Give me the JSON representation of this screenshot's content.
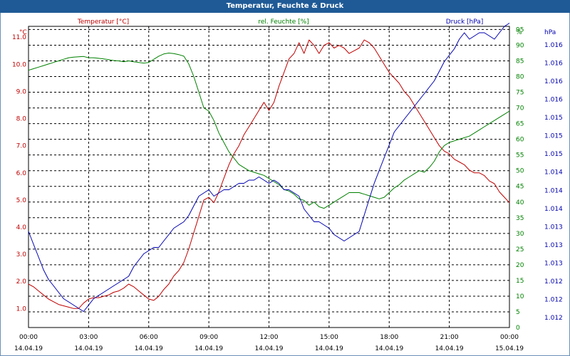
{
  "chart_data": {
    "type": "line",
    "title": "Temperatur, Feuchte & Druck",
    "colors": {
      "temperature": "#c00000",
      "humidity": "#008000",
      "pressure": "#0000b0",
      "grid": "#000000"
    },
    "x_ticks": [
      {
        "time": "00:00",
        "date": "14.04.19"
      },
      {
        "time": "03:00",
        "date": "14.04.19"
      },
      {
        "time": "06:00",
        "date": "14.04.19"
      },
      {
        "time": "09:00",
        "date": "14.04.19"
      },
      {
        "time": "12:00",
        "date": "14.04.19"
      },
      {
        "time": "15:00",
        "date": "14.04.19"
      },
      {
        "time": "18:00",
        "date": "14.04.19"
      },
      {
        "time": "21:00",
        "date": "14.04.19"
      },
      {
        "time": "00:00",
        "date": "15.04.19"
      }
    ],
    "xlim": [
      0,
      24
    ],
    "axes": {
      "temperature": {
        "label": "Temperatur [°C]",
        "unit": "°C",
        "ylim": [
          0.3,
          11.4
        ],
        "ticks": [
          1.0,
          2.0,
          3.0,
          4.0,
          5.0,
          6.0,
          7.0,
          8.0,
          9.0,
          10.0,
          11.0
        ],
        "tick_labels": [
          "1.0",
          "2.0",
          "3.0",
          "4.0",
          "5.0",
          "6.0",
          "7.0",
          "8.0",
          "9.0",
          "10.0",
          "11.0"
        ]
      },
      "humidity": {
        "label": "rel. Feuchte [%]",
        "unit": "%",
        "ylim": [
          0,
          96
        ],
        "ticks": [
          0,
          5,
          10,
          15,
          20,
          25,
          30,
          35,
          40,
          45,
          50,
          55,
          60,
          65,
          70,
          75,
          80,
          85,
          90,
          95
        ],
        "tick_labels": [
          "0",
          "5",
          "10",
          "15",
          "20",
          "25",
          "30",
          "35",
          "40",
          "45",
          "50",
          "55",
          "60",
          "65",
          "70",
          "75",
          "80",
          "85",
          "90",
          "95"
        ]
      },
      "pressure": {
        "label": "Druck [hPa]",
        "unit": "hPa",
        "ylim": [
          1011.6,
          1016.3
        ],
        "tick_labels": [
          "1.012",
          "1.012",
          "1.012",
          "1.013",
          "1.013",
          "1.013",
          "1.014",
          "1.014",
          "1.014",
          "1.015",
          "1.015",
          "1.015",
          "1.016",
          "1.016",
          "1.016",
          "1.016"
        ]
      }
    },
    "series": [
      {
        "name": "Temperatur",
        "axis": "temperature",
        "x": [
          0,
          0.25,
          0.5,
          0.75,
          1,
          1.25,
          1.5,
          1.75,
          2,
          2.25,
          2.5,
          2.75,
          3,
          3.25,
          3.5,
          3.75,
          4,
          4.25,
          4.5,
          4.75,
          5,
          5.25,
          5.5,
          5.75,
          6,
          6.25,
          6.5,
          6.75,
          7,
          7.25,
          7.5,
          7.75,
          8,
          8.25,
          8.5,
          8.75,
          9,
          9.25,
          9.5,
          9.75,
          10,
          10.25,
          10.5,
          10.75,
          11,
          11.25,
          11.5,
          11.75,
          12,
          12.25,
          12.5,
          12.75,
          13,
          13.25,
          13.5,
          13.75,
          14,
          14.25,
          14.5,
          14.75,
          15,
          15.25,
          15.5,
          15.75,
          16,
          16.25,
          16.5,
          16.75,
          17,
          17.25,
          17.5,
          17.75,
          18,
          18.25,
          18.5,
          18.75,
          19,
          19.25,
          19.5,
          19.75,
          20,
          20.25,
          20.5,
          20.75,
          21,
          21.25,
          21.5,
          21.75,
          22,
          22.25,
          22.5,
          22.75,
          23,
          23.25,
          23.5,
          23.75,
          24
        ],
        "values": [
          1.9,
          1.8,
          1.65,
          1.5,
          1.35,
          1.25,
          1.15,
          1.1,
          1.05,
          1.0,
          1.0,
          1.2,
          1.35,
          1.4,
          1.4,
          1.45,
          1.5,
          1.6,
          1.65,
          1.75,
          1.9,
          1.8,
          1.65,
          1.5,
          1.35,
          1.3,
          1.45,
          1.7,
          1.9,
          2.2,
          2.4,
          2.7,
          3.2,
          3.8,
          4.4,
          5.0,
          5.1,
          4.9,
          5.3,
          5.8,
          6.3,
          6.7,
          7.0,
          7.4,
          7.7,
          8.0,
          8.3,
          8.6,
          8.3,
          8.6,
          9.2,
          9.7,
          10.2,
          10.4,
          10.8,
          10.4,
          10.9,
          10.7,
          10.4,
          10.7,
          10.8,
          10.6,
          10.7,
          10.6,
          10.4,
          10.5,
          10.6,
          10.9,
          10.8,
          10.6,
          10.3,
          10.0,
          9.7,
          9.5,
          9.3,
          9.0,
          8.8,
          8.5,
          8.2,
          7.9,
          7.6,
          7.3,
          7.0,
          6.8,
          6.7,
          6.5,
          6.4,
          6.3,
          6.1,
          6.0,
          6.0,
          5.9,
          5.7,
          5.6,
          5.3,
          5.1,
          4.9
        ]
      },
      {
        "name": "rel. Feuchte",
        "axis": "humidity",
        "x": [
          0,
          0.25,
          0.5,
          0.75,
          1,
          1.25,
          1.5,
          1.75,
          2,
          2.25,
          2.5,
          2.75,
          3,
          3.25,
          3.5,
          3.75,
          4,
          4.25,
          4.5,
          4.75,
          5,
          5.25,
          5.5,
          5.75,
          6,
          6.25,
          6.5,
          6.75,
          7,
          7.25,
          7.5,
          7.75,
          8,
          8.25,
          8.5,
          8.75,
          9,
          9.25,
          9.5,
          9.75,
          10,
          10.25,
          10.5,
          10.75,
          11,
          11.25,
          11.5,
          11.75,
          12,
          12.25,
          12.5,
          12.75,
          13,
          13.25,
          13.5,
          13.75,
          14,
          14.25,
          14.5,
          14.75,
          15,
          15.25,
          15.5,
          15.75,
          16,
          16.25,
          16.5,
          16.75,
          17,
          17.25,
          17.5,
          17.75,
          18,
          18.25,
          18.5,
          18.75,
          19,
          19.25,
          19.5,
          19.75,
          20,
          20.25,
          20.5,
          20.75,
          21,
          21.25,
          21.5,
          21.75,
          22,
          22.25,
          22.5,
          22.75,
          23,
          23.25,
          23.5,
          23.75,
          24
        ],
        "values": [
          82,
          82.5,
          83,
          83.5,
          84,
          84.5,
          85,
          85.5,
          86,
          86.2,
          86.3,
          86.4,
          86,
          86,
          85.8,
          85.6,
          85.4,
          85.1,
          85,
          84.7,
          85,
          84.7,
          84.5,
          84.3,
          84.5,
          85.5,
          86.5,
          87.2,
          87.5,
          87.3,
          87,
          86.5,
          84,
          80,
          75,
          70,
          69,
          66,
          62,
          59,
          56,
          54,
          52,
          51,
          50,
          49.5,
          49,
          48.5,
          47.5,
          46.5,
          45.5,
          44,
          43.5,
          42.5,
          41,
          40.5,
          39,
          40,
          38.5,
          38,
          39,
          40,
          41,
          42,
          43,
          43,
          43,
          42.5,
          42,
          41.5,
          41,
          41.5,
          43,
          44.5,
          45.5,
          47,
          48,
          49,
          50,
          49.5,
          51,
          53,
          56,
          58,
          59,
          59.5,
          60,
          60.5,
          61,
          62,
          63,
          64,
          65,
          66,
          67,
          68,
          69
        ]
      },
      {
        "name": "Druck",
        "axis": "pressure",
        "x": [
          0,
          0.25,
          0.5,
          0.75,
          1,
          1.25,
          1.5,
          1.75,
          2,
          2.25,
          2.5,
          2.75,
          3,
          3.25,
          3.5,
          3.75,
          4,
          4.25,
          4.5,
          4.75,
          5,
          5.25,
          5.5,
          5.75,
          6,
          6.25,
          6.5,
          6.75,
          7,
          7.25,
          7.5,
          7.75,
          8,
          8.25,
          8.5,
          8.75,
          9,
          9.25,
          9.5,
          9.75,
          10,
          10.25,
          10.5,
          10.75,
          11,
          11.25,
          11.5,
          11.75,
          12,
          12.25,
          12.5,
          12.75,
          13,
          13.25,
          13.5,
          13.75,
          14,
          14.25,
          14.5,
          14.75,
          15,
          15.25,
          15.5,
          15.75,
          16,
          16.25,
          16.5,
          16.75,
          17,
          17.25,
          17.5,
          17.75,
          18,
          18.25,
          18.5,
          18.75,
          19,
          19.25,
          19.5,
          19.75,
          20,
          20.25,
          20.5,
          20.75,
          21,
          21.25,
          21.5,
          21.75,
          22,
          22.25,
          22.5,
          22.75,
          23,
          23.25,
          23.5,
          23.75,
          24
        ],
        "values": [
          1013.1,
          1012.9,
          1012.7,
          1012.5,
          1012.35,
          1012.25,
          1012.15,
          1012.05,
          1012.0,
          1011.95,
          1011.9,
          1011.85,
          1011.95,
          1012.05,
          1012.1,
          1012.15,
          1012.2,
          1012.25,
          1012.3,
          1012.35,
          1012.4,
          1012.55,
          1012.65,
          1012.75,
          1012.8,
          1012.85,
          1012.85,
          1012.95,
          1013.05,
          1013.15,
          1013.2,
          1013.25,
          1013.35,
          1013.5,
          1013.65,
          1013.7,
          1013.75,
          1013.65,
          1013.7,
          1013.75,
          1013.75,
          1013.8,
          1013.85,
          1013.85,
          1013.9,
          1013.9,
          1013.95,
          1013.9,
          1013.85,
          1013.9,
          1013.85,
          1013.75,
          1013.75,
          1013.7,
          1013.65,
          1013.45,
          1013.35,
          1013.25,
          1013.25,
          1013.2,
          1013.15,
          1013.05,
          1013.0,
          1012.95,
          1013.0,
          1013.05,
          1013.1,
          1013.35,
          1013.6,
          1013.85,
          1014.05,
          1014.25,
          1014.45,
          1014.65,
          1014.75,
          1014.85,
          1014.95,
          1015.05,
          1015.15,
          1015.25,
          1015.35,
          1015.45,
          1015.6,
          1015.75,
          1015.85,
          1015.95,
          1016.1,
          1016.2,
          1016.1,
          1016.15,
          1016.2,
          1016.2,
          1016.15,
          1016.1,
          1016.2,
          1016.3,
          1016.35
        ]
      }
    ]
  }
}
